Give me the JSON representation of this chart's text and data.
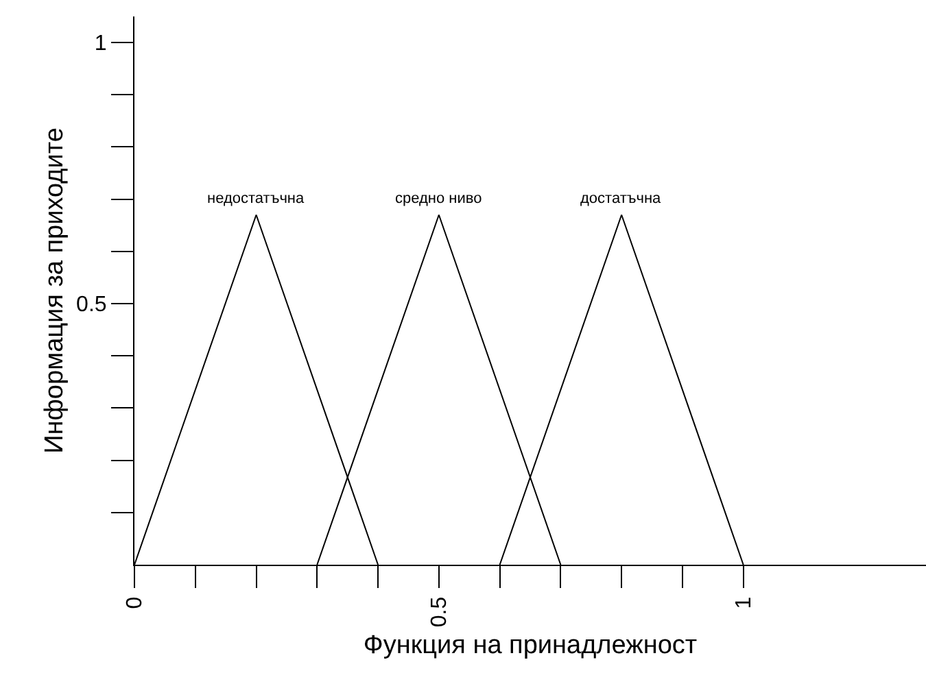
{
  "chart_data": {
    "type": "line",
    "xlabel": "Функция на принадлежност",
    "ylabel": "Информация за приходите",
    "series": [
      {
        "name": "недостатъчна",
        "color": "#000000",
        "x": [
          0,
          0.2,
          0.4
        ],
        "values": [
          0,
          0.67,
          0
        ]
      },
      {
        "name": "средно ниво",
        "color": "#000000",
        "x": [
          0.3,
          0.5,
          0.7
        ],
        "values": [
          0,
          0.67,
          0
        ]
      },
      {
        "name": "достатъчна",
        "color": "#000000",
        "x": [
          0.6,
          0.8,
          1.0
        ],
        "values": [
          0,
          0.67,
          0
        ]
      }
    ],
    "xlim": [
      0,
      1.3
    ],
    "ylim": [
      0,
      1.05
    ],
    "xticks": [
      0,
      {
        "value": 0.1,
        "label": null
      },
      {
        "value": 0.2,
        "label": null
      },
      {
        "value": 0.3,
        "label": null
      },
      {
        "value": 0.4,
        "label": null
      },
      0.5,
      {
        "value": 0.6,
        "label": null
      },
      {
        "value": 0.7,
        "label": null
      },
      {
        "value": 0.8,
        "label": null
      },
      {
        "value": 0.9,
        "label": null
      },
      1
    ],
    "yticks": [
      {
        "value": 0.1,
        "label": null
      },
      {
        "value": 0.2,
        "label": null
      },
      {
        "value": 0.3,
        "label": null
      },
      {
        "value": 0.4,
        "label": null
      },
      0.5,
      {
        "value": 0.6,
        "label": null
      },
      {
        "value": 0.7,
        "label": null
      },
      {
        "value": 0.8,
        "label": null
      },
      {
        "value": 0.9,
        "label": null
      },
      1
    ],
    "grid": false,
    "legend": false,
    "marker": "none",
    "line_style": "solid"
  }
}
